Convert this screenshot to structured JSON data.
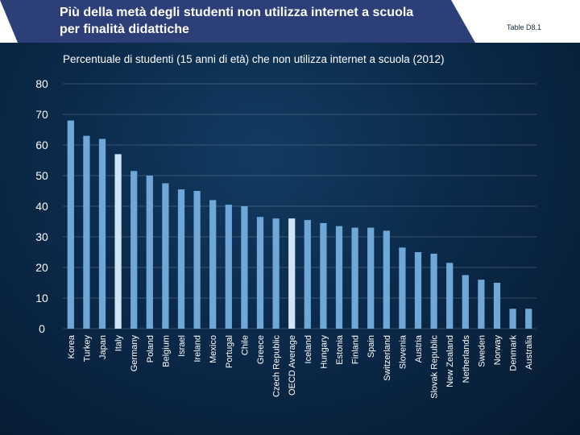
{
  "header": {
    "title_line1": "Più della metà degli studenti non utilizza internet a scuola",
    "title_line2": "per finalità didattiche",
    "table_ref": "Table D8.1"
  },
  "colors": {
    "bar": "#6fa8d6",
    "bar_highlight": "#cfe4f5",
    "header_bg": "#ffffff",
    "header_accent": "#2d3f78"
  },
  "chart_data": {
    "type": "bar",
    "title": "Percentuale di studenti (15 anni di età) che non utilizza internet a scuola (2012)",
    "xlabel": "",
    "ylabel": "",
    "ylim": [
      0,
      80
    ],
    "yticks": [
      0,
      10,
      20,
      30,
      40,
      50,
      60,
      70,
      80
    ],
    "grid": true,
    "highlighted": [
      "Italy",
      "OECD Average"
    ],
    "categories": [
      "Korea",
      "Turkey",
      "Japan",
      "Italy",
      "Germany",
      "Poland",
      "Belgium",
      "Israel",
      "Ireland",
      "Mexico",
      "Portugal",
      "Chile",
      "Greece",
      "Czech Republic",
      "OECD Average",
      "Iceland",
      "Hungary",
      "Estonia",
      "Finland",
      "Spain",
      "Switzerland",
      "Slovenia",
      "Austria",
      "Slovak Republic",
      "New Zealand",
      "Netherlands",
      "Sweden",
      "Norway",
      "Denmark",
      "Australia"
    ],
    "values": [
      68,
      63,
      62,
      57,
      51.5,
      50,
      47.5,
      45.5,
      45,
      42,
      40.5,
      40,
      36.5,
      36,
      36,
      35.5,
      34.5,
      33.5,
      33,
      33,
      32,
      26.5,
      25,
      24.5,
      21.5,
      17.5,
      16,
      15,
      6.5,
      6.5
    ]
  }
}
